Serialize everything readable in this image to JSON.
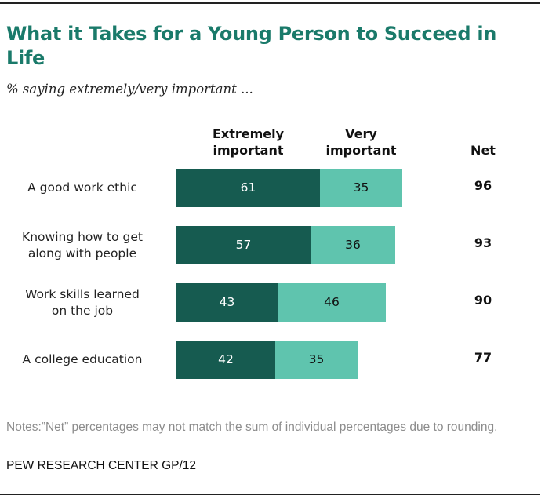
{
  "chart_data": {
    "type": "bar",
    "orientation": "horizontal",
    "stacked": true,
    "title": "What it Takes for a Young Person to Succeed in Life",
    "subtitle": "% saying extremely/very important ...",
    "categories": [
      "A good work ethic",
      "Knowing how to get along with people",
      "Work skills learned on the job",
      "A college education"
    ],
    "category_lines": [
      [
        "A good work ethic"
      ],
      [
        "Knowing how to get",
        "along with people"
      ],
      [
        "Work skills learned",
        "on the job"
      ],
      [
        "A college education"
      ]
    ],
    "series": [
      {
        "name": "Extremely important",
        "name_lines": [
          "Extremely",
          "important"
        ],
        "color": "#165b50",
        "label_color": "#ffffff",
        "values": [
          61,
          57,
          43,
          42
        ]
      },
      {
        "name": "Very important",
        "name_lines": [
          "Very",
          "important"
        ],
        "color": "#5fc4ae",
        "label_color": "#111111",
        "values": [
          35,
          36,
          46,
          35
        ]
      }
    ],
    "net": {
      "label": "Net",
      "values": [
        96,
        93,
        90,
        77
      ]
    },
    "xlim": [
      0,
      100
    ],
    "grid": false,
    "legend": "top (column headers above bars)",
    "notes": "Notes:”Net” percentages may not match the sum of individual percentages due to rounding.",
    "source": "PEW RESEARCH CENTER GP/12"
  }
}
